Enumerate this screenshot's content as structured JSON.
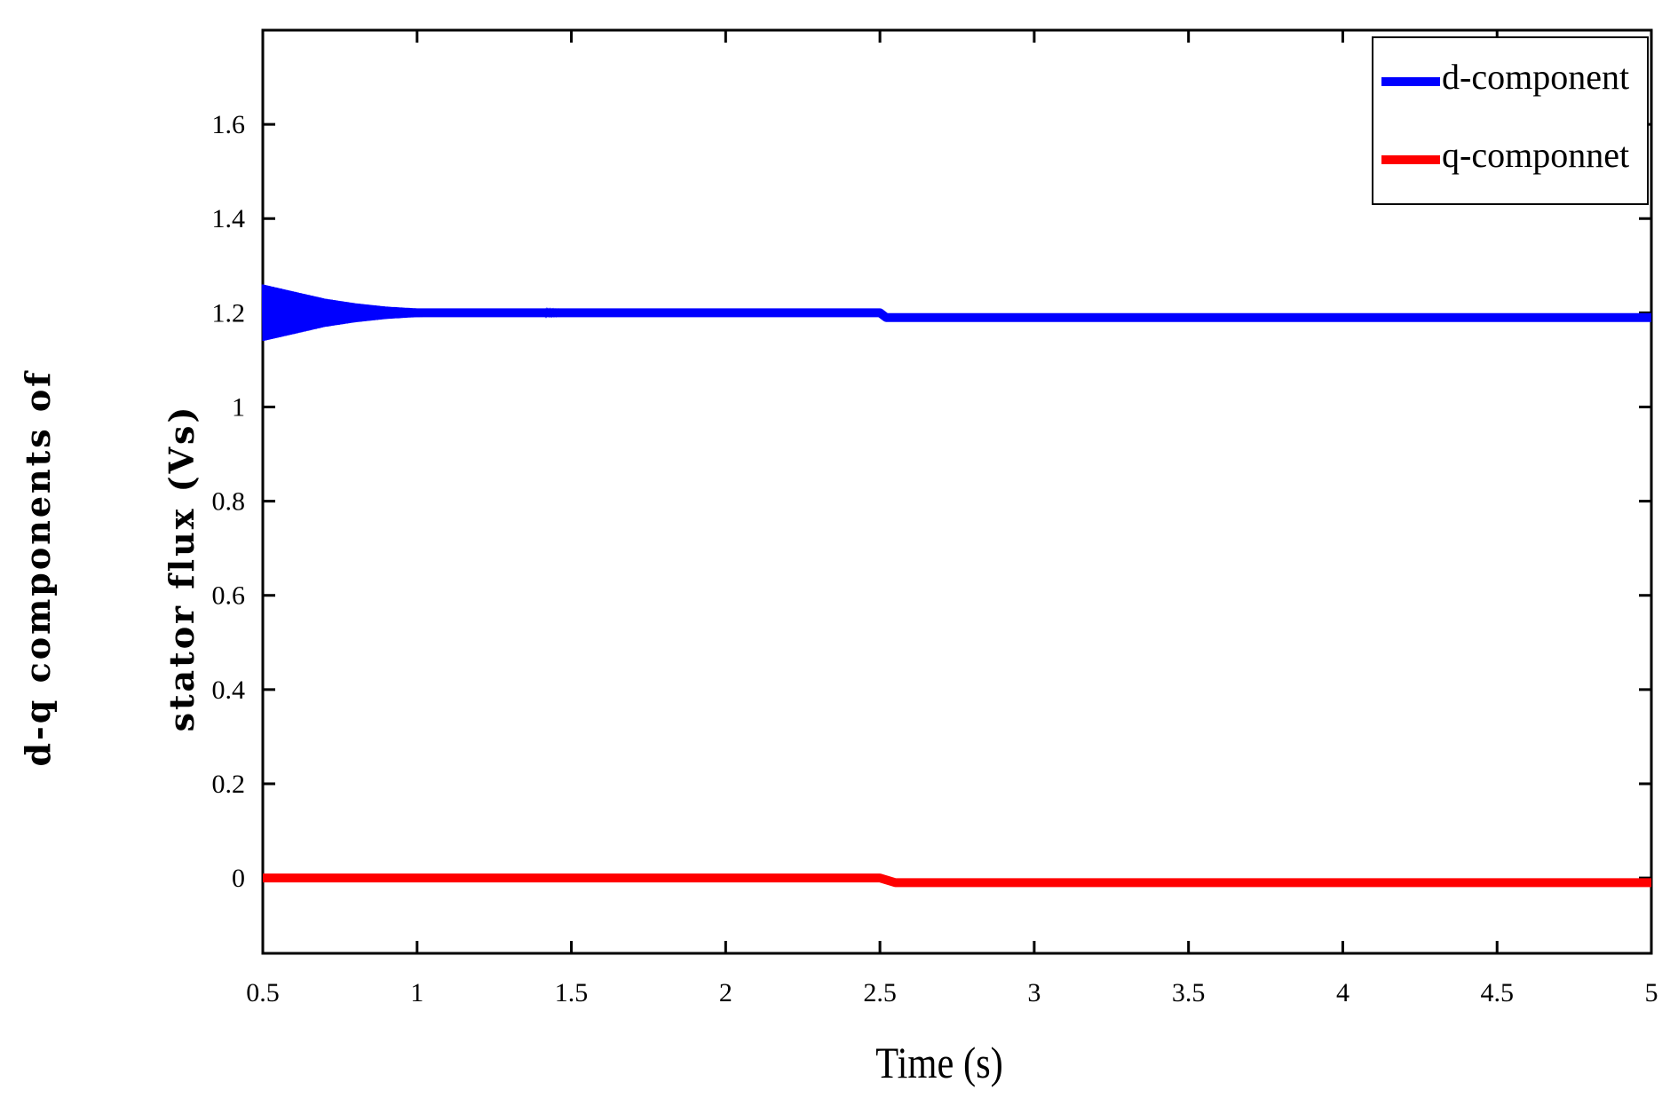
{
  "chart_data": {
    "type": "line",
    "title": "",
    "xlabel": "Time (s)",
    "ylabel_lines": [
      "d-q components of",
      "stator flux (Vs)"
    ],
    "xlim": [
      0.5,
      5
    ],
    "ylim": [
      -0.16,
      1.8
    ],
    "x_ticks": [
      0.5,
      1,
      1.5,
      2,
      2.5,
      3,
      3.5,
      4,
      4.5,
      5
    ],
    "x_tick_labels": [
      "0.5",
      "1",
      "1.5",
      "2",
      "2.5",
      "3",
      "3.5",
      "4",
      "4.5",
      "5"
    ],
    "y_ticks": [
      0,
      0.2,
      0.4,
      0.6,
      0.8,
      1,
      1.2,
      1.4,
      1.6
    ],
    "y_tick_labels": [
      "0",
      "0.2",
      "0.4",
      "0.6",
      "0.8",
      "1",
      "1.2",
      "1.4",
      "1.6"
    ],
    "grid": false,
    "legend_position": "top-right",
    "series": [
      {
        "name": "d-component",
        "color": "#0000ff",
        "x": [
          0.5,
          0.6,
          0.7,
          0.8,
          0.9,
          1.0,
          1.2,
          1.4,
          1.6,
          2.0,
          2.4,
          2.5,
          2.52,
          2.55,
          2.6,
          2.8,
          3.0,
          3.5,
          4.0,
          4.5,
          5.0
        ],
        "y": [
          1.2,
          1.2,
          1.2,
          1.2,
          1.2,
          1.2,
          1.2,
          1.2,
          1.2,
          1.2,
          1.2,
          1.2,
          1.19,
          1.19,
          1.19,
          1.19,
          1.19,
          1.19,
          1.19,
          1.19,
          1.19
        ],
        "oscillation_envelope": {
          "x": [
            0.5,
            0.6,
            0.7,
            0.8,
            0.9,
            1.0,
            1.2,
            1.4,
            1.6
          ],
          "amplitude": [
            0.06,
            0.045,
            0.03,
            0.02,
            0.013,
            0.009,
            0.005,
            0.003,
            0.0
          ]
        }
      },
      {
        "name": "q-componnet",
        "color": "#ff0000",
        "x": [
          0.5,
          1.0,
          1.5,
          2.0,
          2.5,
          2.55,
          3.0,
          3.5,
          4.0,
          4.5,
          5.0
        ],
        "y": [
          0.0,
          0.0,
          0.0,
          0.0,
          0.0,
          -0.01,
          -0.01,
          -0.01,
          -0.01,
          -0.01,
          -0.01
        ]
      }
    ]
  }
}
